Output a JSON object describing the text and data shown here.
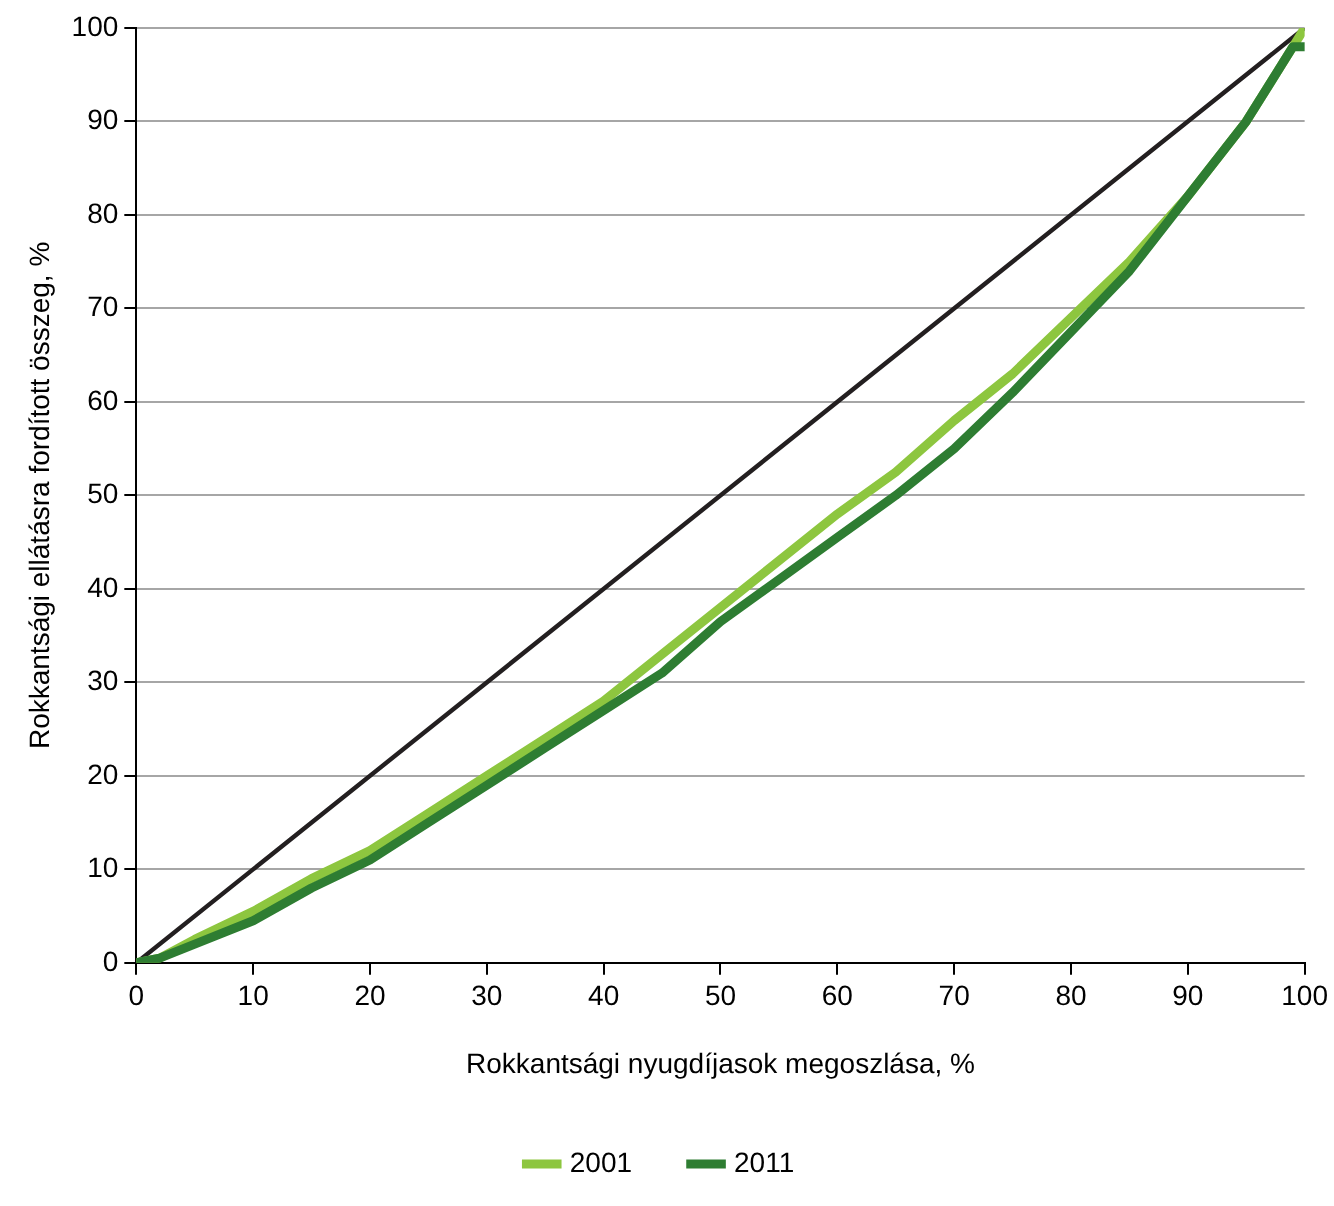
{
  "chart_data": {
    "type": "line",
    "xlabel": "Rokkantsági nyugdíjasok megoszlása, %",
    "ylabel": "Rokkantsági ellátásra fordított összeg, %",
    "xlim": [
      0,
      100
    ],
    "ylim": [
      0,
      100
    ],
    "xticks": [
      0,
      10,
      20,
      30,
      40,
      50,
      60,
      70,
      80,
      90,
      100
    ],
    "yticks": [
      0,
      10,
      20,
      30,
      40,
      50,
      60,
      70,
      80,
      90,
      100
    ],
    "grid": "y",
    "legend": "bottom",
    "marker": "none",
    "line_style": "solid",
    "series": [
      {
        "color": "#231f20",
        "x": [
          0,
          100
        ],
        "values": [
          0,
          100
        ]
      },
      {
        "name": "2001",
        "color": "#8dc63f",
        "x": [
          0,
          2,
          5,
          10,
          15,
          20,
          25,
          30,
          35,
          40,
          45,
          50,
          55,
          60,
          65,
          70,
          75,
          80,
          85,
          90,
          95,
          98,
          100
        ],
        "values": [
          0,
          0.5,
          2.5,
          5.5,
          9,
          12,
          16,
          20,
          24,
          28,
          33,
          38,
          43,
          48,
          52.5,
          58,
          63,
          69,
          75,
          82,
          90,
          96,
          100
        ]
      },
      {
        "name": "2011",
        "color": "#2e7d32",
        "x": [
          0,
          2,
          5,
          10,
          15,
          20,
          25,
          30,
          35,
          40,
          45,
          50,
          55,
          60,
          65,
          70,
          75,
          80,
          85,
          90,
          95,
          98,
          99,
          100
        ],
        "values": [
          0,
          0.5,
          2,
          4.5,
          8,
          11,
          15,
          19,
          23,
          27,
          31,
          36.5,
          41,
          45.5,
          50,
          55,
          61,
          67.5,
          74,
          82,
          90,
          96,
          98,
          98
        ]
      }
    ]
  }
}
